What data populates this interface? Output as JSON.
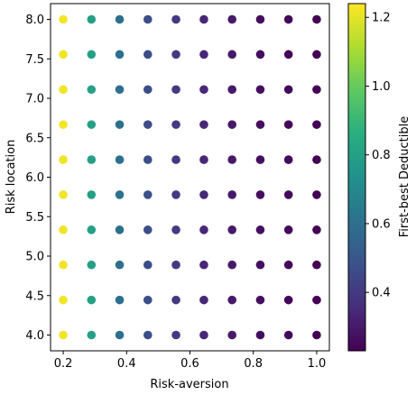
{
  "chart_data": {
    "type": "scatter",
    "title": "",
    "xlabel": "Risk-aversion",
    "ylabel": "Risk location",
    "xlim": [
      0.16,
      1.04
    ],
    "ylim": [
      3.8,
      8.2
    ],
    "xticks": [
      0.2,
      0.4,
      0.6,
      0.8,
      1.0
    ],
    "xtick_labels": [
      "0.2",
      "0.4",
      "0.6",
      "0.8",
      "1.0"
    ],
    "yticks": [
      4.0,
      4.5,
      5.0,
      5.5,
      6.0,
      6.5,
      7.0,
      7.5,
      8.0
    ],
    "ytick_labels": [
      "4.0",
      "4.5",
      "5.0",
      "5.5",
      "6.0",
      "6.5",
      "7.0",
      "7.5",
      "8.0"
    ],
    "x": [
      0.2,
      0.289,
      0.378,
      0.467,
      0.556,
      0.644,
      0.733,
      0.822,
      0.911,
      1.0
    ],
    "y": [
      4.0,
      4.444,
      4.889,
      5.333,
      5.778,
      6.222,
      6.667,
      7.111,
      7.556,
      8.0
    ],
    "color_values_by_x": [
      1.22,
      0.8,
      0.6,
      0.47,
      0.4,
      0.34,
      0.3,
      0.27,
      0.25,
      0.23
    ],
    "colormap": "viridis",
    "colorbar": {
      "label": "First-best Deductible",
      "range": [
        0.23,
        1.24
      ],
      "ticks": [
        0.4,
        0.6,
        0.8,
        1.0,
        1.2
      ],
      "tick_labels": [
        "0.4",
        "0.6",
        "0.8",
        "1.0",
        "1.2"
      ]
    },
    "grid": false,
    "legend": "none"
  }
}
